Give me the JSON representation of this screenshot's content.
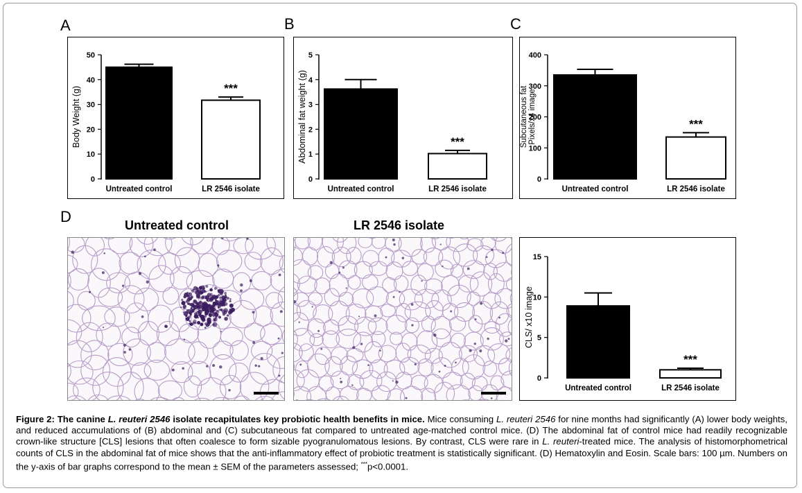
{
  "panels": {
    "A": "A",
    "B": "B",
    "C": "C",
    "D": "D"
  },
  "micrographs": {
    "left_title": "Untreated control",
    "right_title": "LR 2546 isolate",
    "stain_colors": {
      "background": "#fbf8fb",
      "membrane": "#b79ec9",
      "nuclei": "#3b1d5e"
    }
  },
  "chart_data": [
    {
      "id": "A",
      "type": "bar",
      "categories": [
        "Untreated control",
        "LR 2546 isolate"
      ],
      "values": [
        45,
        31.7
      ],
      "errors": [
        1.2,
        1.3
      ],
      "fills": [
        "#000000",
        "#ffffff"
      ],
      "significance": [
        "",
        "***"
      ],
      "ylabel": "Body Weight (g)",
      "ylim": [
        0,
        50
      ],
      "yticks": [
        0,
        10,
        20,
        30,
        40,
        50
      ]
    },
    {
      "id": "B",
      "type": "bar",
      "categories": [
        "Untreated control",
        "LR 2546 isolate"
      ],
      "values": [
        3.62,
        1.02
      ],
      "errors": [
        0.38,
        0.13
      ],
      "fills": [
        "#000000",
        "#ffffff"
      ],
      "significance": [
        "",
        "***"
      ],
      "ylabel": "Abdominal fat weight (g)",
      "ylim": [
        0,
        5
      ],
      "yticks": [
        0,
        1,
        2,
        3,
        4,
        5
      ]
    },
    {
      "id": "C",
      "type": "bar",
      "categories": [
        "Untreated control",
        "LR 2546 isolate"
      ],
      "values": [
        335,
        135
      ],
      "errors": [
        18,
        14
      ],
      "fills": [
        "#000000",
        "#ffffff"
      ],
      "significance": [
        "",
        "***"
      ],
      "ylabel_lines": [
        "Subcutaneous fat",
        "Pixels/x4 image"
      ],
      "ylim": [
        0,
        400
      ],
      "yticks": [
        0,
        100,
        200,
        300,
        400
      ]
    },
    {
      "id": "D",
      "type": "bar",
      "categories": [
        "Untreated control",
        "LR 2546 isolate"
      ],
      "values": [
        8.9,
        1.0
      ],
      "errors": [
        1.6,
        0.2
      ],
      "fills": [
        "#000000",
        "#ffffff"
      ],
      "significance": [
        "",
        "***"
      ],
      "ylabel": "CLS/ x10 image",
      "ylim": [
        0,
        15
      ],
      "yticks": [
        0,
        5,
        10,
        15
      ]
    }
  ],
  "caption": {
    "label": "Figure 2:",
    "title_pre": "The canine",
    "title_italic": "L. reuteri 2546",
    "title_post": "isolate recapitulates key probiotic health benefits in mice.",
    "t1": "Mice consuming",
    "i1": "L. reuteri 2546",
    "t2": "for nine months had significantly (A) lower body weights, and reduced accumulations of (B) abdominal and (C) subcutaneous fat compared to untreated age-matched control mice. (D) The abdominal fat of control mice had readily recognizable crown-like structure [CLS] lesions that often coalesce to form sizable pyogranulomatous lesions. By contrast, CLS were rare in",
    "i2": "L. reuteri",
    "t3": "-treated mice. The analysis of histomorphometrical counts of CLS in the abdominal fat of mice shows that the anti-inflammatory effect of probiotic treatment is statistically significant. (D) Hematoxylin and Eosin. Scale bars: 100 µm. Numbers on the y-axis of bar graphs correspond to the mean ± SEM of the parameters assessed;",
    "sup": "***",
    "t4": "p<0.0001."
  }
}
